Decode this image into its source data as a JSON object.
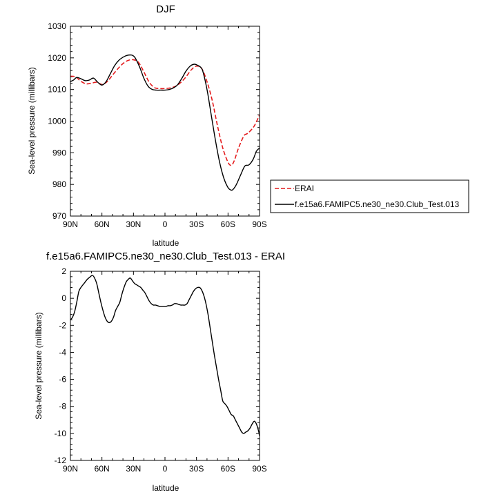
{
  "chart_data": [
    {
      "type": "line",
      "title": "DJF",
      "xlabel": "latitude",
      "ylabel": "Sea-level pressure (millibars)",
      "xlim": [
        90,
        -90
      ],
      "ylim": [
        970,
        1030
      ],
      "xtick_values": [
        90,
        60,
        30,
        0,
        -30,
        -60,
        -90
      ],
      "xtick_labels": [
        "90N",
        "60N",
        "30N",
        "0",
        "30S",
        "60S",
        "90S"
      ],
      "ytick_values": [
        970,
        980,
        990,
        1000,
        1010,
        1020,
        1030
      ],
      "ytick_labels": [
        "970",
        "980",
        "990",
        "1000",
        "1010",
        "1020",
        "1030"
      ],
      "grid": false,
      "legend": "outside-right",
      "series": [
        {
          "name": "ERAI",
          "color": "#e41a1c",
          "dash": "dashed",
          "x": [
            90,
            85,
            80,
            75,
            70,
            65,
            60,
            55,
            50,
            45,
            40,
            35,
            30,
            25,
            20,
            15,
            10,
            5,
            0,
            -5,
            -10,
            -15,
            -20,
            -25,
            -30,
            -35,
            -40,
            -45,
            -50,
            -55,
            -60,
            -63,
            -65,
            -67,
            -70,
            -75,
            -78,
            -80,
            -85,
            -90
          ],
          "y": [
            1014.2,
            1014.0,
            1012.6,
            1011.8,
            1012.0,
            1012.3,
            1011.6,
            1012.5,
            1014.5,
            1016.5,
            1018.2,
            1019.2,
            1019.4,
            1018.5,
            1015.5,
            1012.3,
            1010.6,
            1010.3,
            1010.3,
            1010.5,
            1011.0,
            1012.2,
            1014.0,
            1016.2,
            1017.4,
            1016.6,
            1012.5,
            1006.5,
            998.5,
            991.5,
            987.0,
            986.0,
            986.8,
            988.5,
            991.5,
            995.3,
            996.0,
            996.5,
            998.5,
            1002.0
          ]
        },
        {
          "name": "f.e15a6.FAMIPC5.ne30_ne30.Club_Test.013",
          "color": "#000000",
          "dash": "solid",
          "x": [
            90,
            87,
            84,
            80,
            76,
            72,
            68,
            64,
            60,
            56,
            52,
            48,
            44,
            40,
            36,
            32,
            30,
            28,
            24,
            20,
            16,
            12,
            8,
            4,
            0,
            -4,
            -8,
            -12,
            -16,
            -20,
            -24,
            -28,
            -32,
            -34,
            -36,
            -40,
            -44,
            -48,
            -52,
            -56,
            -60,
            -63,
            -65,
            -68,
            -72,
            -76,
            -80,
            -84,
            -87,
            -90
          ],
          "y": [
            1012.5,
            1013.0,
            1013.8,
            1013.4,
            1012.8,
            1013.0,
            1013.6,
            1012.3,
            1011.4,
            1012.5,
            1015.0,
            1017.5,
            1019.2,
            1020.2,
            1020.8,
            1020.9,
            1020.6,
            1019.8,
            1017.0,
            1013.5,
            1011.0,
            1010.0,
            1009.8,
            1009.8,
            1009.8,
            1010.0,
            1010.5,
            1011.5,
            1013.5,
            1015.8,
            1017.4,
            1018.0,
            1017.5,
            1017.0,
            1015.8,
            1010.0,
            1002.0,
            994.0,
            987.0,
            982.0,
            979.0,
            978.2,
            978.5,
            980.0,
            983.0,
            985.8,
            986.2,
            988.0,
            990.5,
            991.5
          ]
        }
      ]
    },
    {
      "type": "line",
      "title": "f.e15a6.FAMIPC5.ne30_ne30.Club_Test.013 - ERAI",
      "xlabel": "latitude",
      "ylabel": "Sea-level pressure (millibars)",
      "xlim": [
        90,
        -90
      ],
      "ylim": [
        -12,
        2
      ],
      "xtick_values": [
        90,
        60,
        30,
        0,
        -30,
        -60,
        -90
      ],
      "xtick_labels": [
        "90N",
        "60N",
        "30N",
        "0",
        "30S",
        "60S",
        "90S"
      ],
      "ytick_values": [
        -12,
        -10,
        -8,
        -6,
        -4,
        -2,
        0,
        2
      ],
      "ytick_labels": [
        "-12",
        "-10",
        "-8",
        "-6",
        "-4",
        "-2",
        "0",
        "2"
      ],
      "grid": false,
      "series": [
        {
          "color": "#000000",
          "dash": "solid",
          "x": [
            90,
            88,
            86,
            84,
            82,
            80,
            77,
            74,
            71,
            69,
            67,
            65,
            63,
            61,
            59,
            57,
            55,
            53,
            51,
            49,
            47,
            45,
            43,
            41,
            39,
            37,
            35,
            33,
            31,
            29,
            27,
            25,
            23,
            21,
            19,
            17,
            15,
            13,
            11,
            9,
            7,
            5,
            3,
            1,
            -1,
            -3,
            -5,
            -7,
            -9,
            -11,
            -13,
            -15,
            -17,
            -19,
            -21,
            -23,
            -25,
            -27,
            -29,
            -31,
            -33,
            -35,
            -37,
            -39,
            -41,
            -43,
            -45,
            -47,
            -49,
            -51,
            -53,
            -55,
            -57,
            -59,
            -61,
            -63,
            -65,
            -67,
            -69,
            -71,
            -73,
            -75,
            -77,
            -79,
            -81,
            -83,
            -85,
            -87,
            -89,
            -90
          ],
          "y": [
            -1.6,
            -1.4,
            -1.0,
            -0.3,
            0.5,
            0.8,
            1.1,
            1.4,
            1.6,
            1.7,
            1.5,
            1.1,
            0.4,
            -0.3,
            -0.9,
            -1.4,
            -1.7,
            -1.8,
            -1.7,
            -1.4,
            -0.9,
            -0.6,
            -0.3,
            0.3,
            0.8,
            1.2,
            1.4,
            1.5,
            1.3,
            1.1,
            1.0,
            0.9,
            0.8,
            0.6,
            0.4,
            0.1,
            -0.2,
            -0.4,
            -0.5,
            -0.5,
            -0.55,
            -0.6,
            -0.6,
            -0.6,
            -0.6,
            -0.55,
            -0.55,
            -0.5,
            -0.4,
            -0.4,
            -0.45,
            -0.5,
            -0.5,
            -0.5,
            -0.4,
            -0.1,
            0.2,
            0.5,
            0.7,
            0.8,
            0.8,
            0.6,
            0.2,
            -0.4,
            -1.2,
            -2.2,
            -3.2,
            -4.2,
            -5.1,
            -6.0,
            -6.8,
            -7.6,
            -7.8,
            -8.0,
            -8.3,
            -8.6,
            -8.7,
            -9.0,
            -9.3,
            -9.6,
            -9.9,
            -10.0,
            -9.9,
            -9.8,
            -9.6,
            -9.3,
            -9.1,
            -9.3,
            -9.8,
            -10.2
          ]
        }
      ]
    }
  ]
}
